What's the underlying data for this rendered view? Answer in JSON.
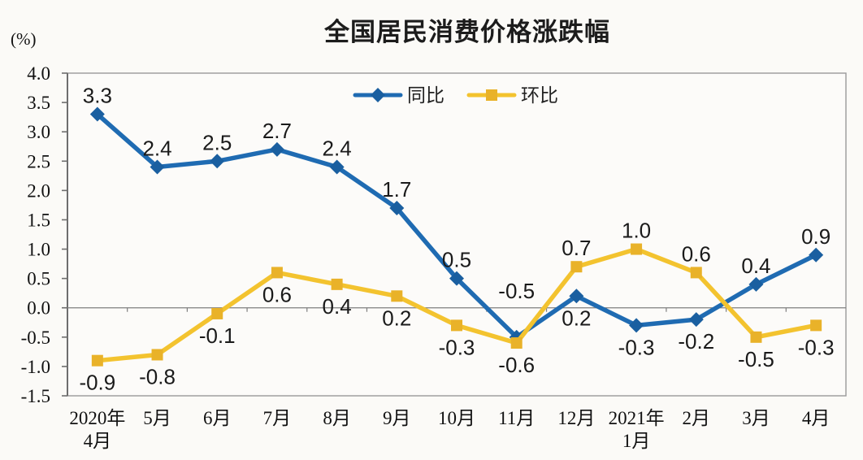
{
  "chart_data": {
    "type": "line",
    "title": "全国居民消费价格涨跌幅",
    "unit_label": "(%)",
    "categories": [
      "2020年\n4月",
      "5月",
      "6月",
      "7月",
      "8月",
      "9月",
      "10月",
      "11月",
      "12月",
      "2021年\n1月",
      "2月",
      "3月",
      "4月"
    ],
    "series": [
      {
        "name": "同比",
        "color": "#1f6bb2",
        "marker_color": "#1a5fa0",
        "marker": "diamond",
        "values": [
          3.3,
          2.4,
          2.5,
          2.7,
          2.4,
          1.7,
          0.5,
          -0.5,
          0.2,
          -0.3,
          -0.2,
          0.4,
          0.9
        ],
        "label_pos": [
          "above",
          "above",
          "above",
          "above",
          "above",
          "above",
          "above",
          "above-far",
          "below",
          "below",
          "below",
          "above",
          "above"
        ]
      },
      {
        "name": "环比",
        "color": "#f3c32f",
        "marker_color": "#e9b229",
        "marker": "square",
        "values": [
          -0.9,
          -0.8,
          -0.1,
          0.6,
          0.4,
          0.2,
          -0.3,
          -0.6,
          0.7,
          1.0,
          0.6,
          -0.5,
          -0.3
        ],
        "label_pos": [
          "below",
          "below",
          "below",
          "below",
          "below",
          "below",
          "below",
          "below",
          "above",
          "above",
          "above",
          "below",
          "below"
        ]
      }
    ],
    "yticks": [
      "4.0",
      "3.5",
      "3.0",
      "2.5",
      "2.0",
      "1.5",
      "1.0",
      "0.5",
      "0.0",
      "-0.5",
      "-1.0",
      "-1.5"
    ],
    "ylim": [
      -1.5,
      4.0
    ],
    "grid": false,
    "legend_position": "top-center",
    "colors": {
      "background": "#fbfaf7",
      "plot_border": "#9a9a9a",
      "axis_line": "#6e6e6e",
      "zero_line": "#7f7f7f",
      "text": "#1a1a1a"
    }
  }
}
